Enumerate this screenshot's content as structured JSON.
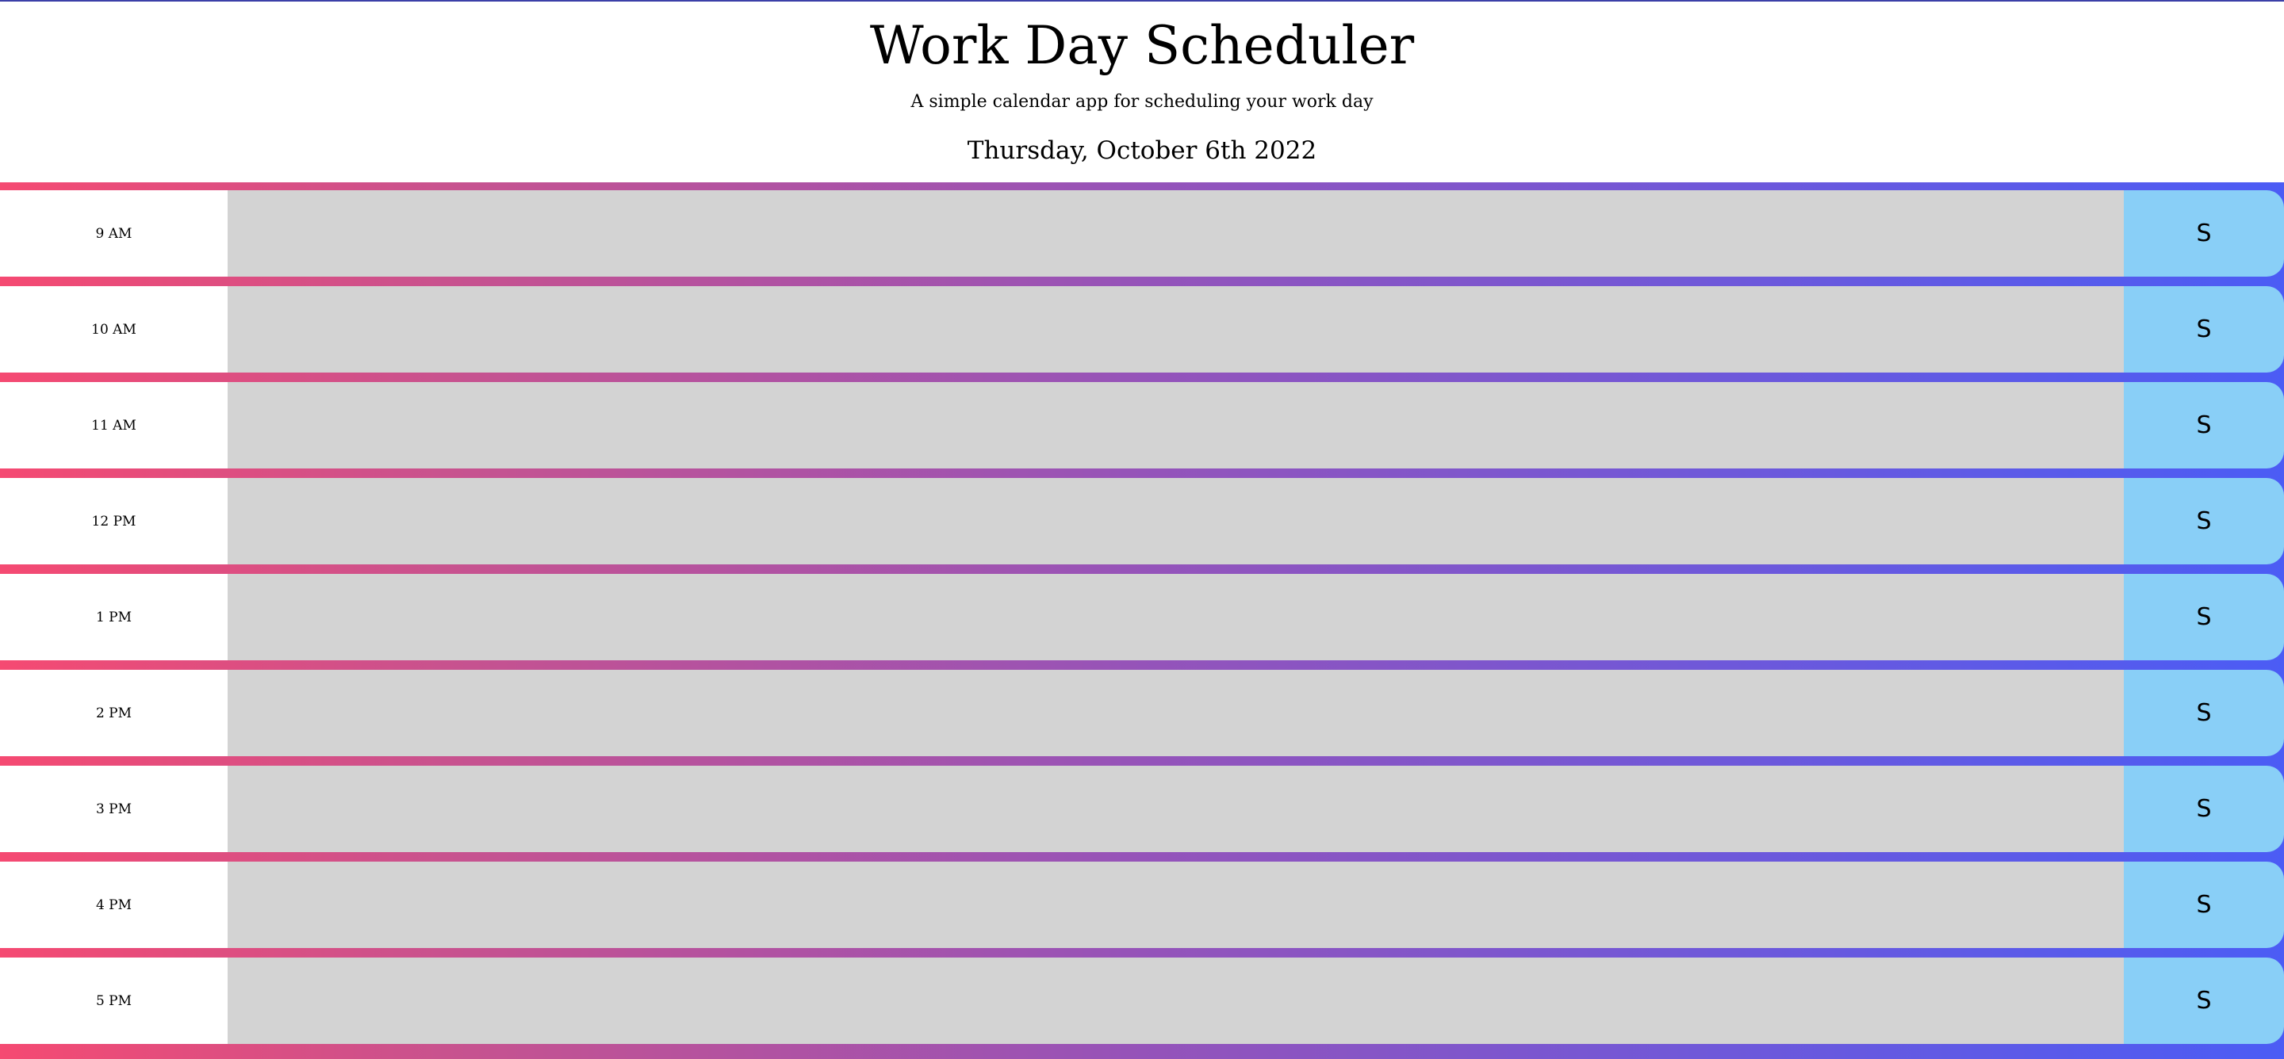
{
  "header": {
    "title": "Work Day Scheduler",
    "subtitle": "A simple calendar app for scheduling your work day",
    "current_day": "Thursday, October 6th 2022"
  },
  "timeblocks": [
    {
      "hour": "9 AM",
      "text": "",
      "save_label": "S"
    },
    {
      "hour": "10 AM",
      "text": "",
      "save_label": "S"
    },
    {
      "hour": "11 AM",
      "text": "",
      "save_label": "S"
    },
    {
      "hour": "12 PM",
      "text": "",
      "save_label": "S"
    },
    {
      "hour": "1 PM",
      "text": "",
      "save_label": "S"
    },
    {
      "hour": "2 PM",
      "text": "",
      "save_label": "S"
    },
    {
      "hour": "3 PM",
      "text": "",
      "save_label": "S"
    },
    {
      "hour": "4 PM",
      "text": "",
      "save_label": "S"
    },
    {
      "hour": "5 PM",
      "text": "",
      "save_label": "S"
    }
  ],
  "colors": {
    "gradient_start": "#f54a72",
    "gradient_end": "#4b5cf5",
    "textarea_bg": "#d3d3d3",
    "save_bg": "#89cff7",
    "top_line": "#3b3fa8"
  }
}
